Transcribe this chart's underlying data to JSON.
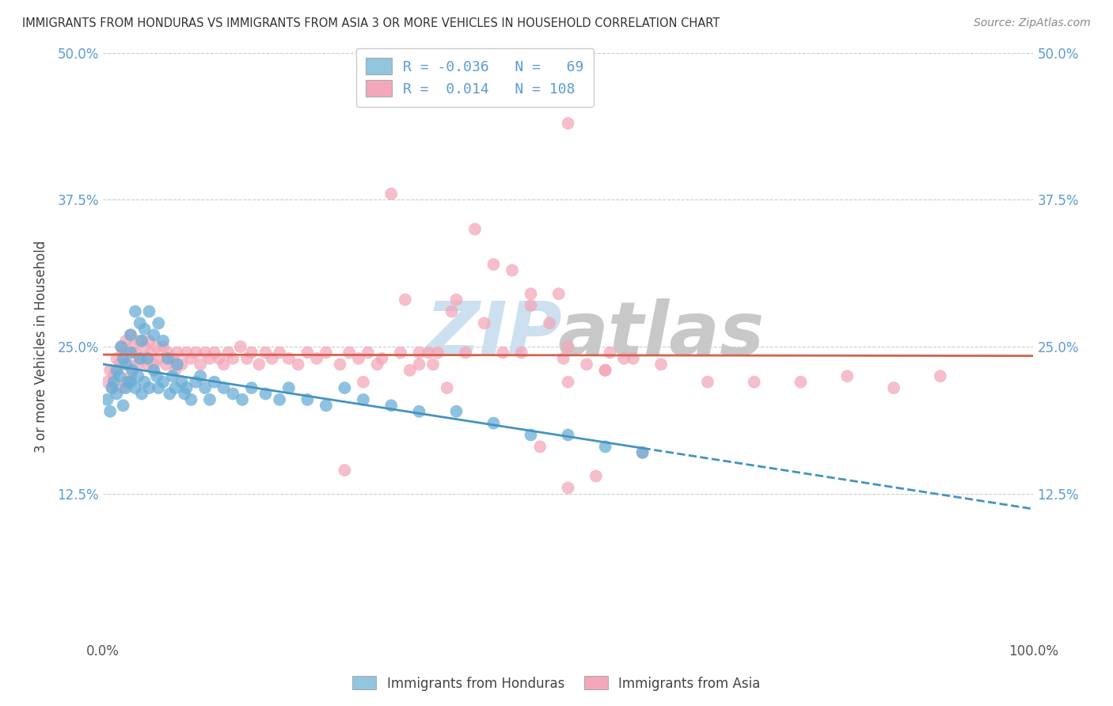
{
  "title": "IMMIGRANTS FROM HONDURAS VS IMMIGRANTS FROM ASIA 3 OR MORE VEHICLES IN HOUSEHOLD CORRELATION CHART",
  "source": "Source: ZipAtlas.com",
  "ylabel": "3 or more Vehicles in Household",
  "xlim": [
    0,
    1.0
  ],
  "ylim": [
    0,
    0.5
  ],
  "xtick_labels": [
    "0.0%",
    "100.0%"
  ],
  "ytick_values": [
    0.125,
    0.25,
    0.375,
    0.5
  ],
  "ytick_labels": [
    "12.5%",
    "25.0%",
    "37.5%",
    "50.0%"
  ],
  "bottom_legend": [
    "Immigrants from Honduras",
    "Immigrants from Asia"
  ],
  "blue_R": -0.036,
  "blue_N": 69,
  "pink_R": 0.014,
  "pink_N": 108,
  "blue_color": "#92c5de",
  "pink_color": "#f4a7b9",
  "blue_dot_color": "#6aaed6",
  "pink_dot_color": "#f4a7b9",
  "blue_line_color": "#4393c3",
  "pink_line_color": "#d6604d",
  "watermark_zip_color": "#cce0f0",
  "watermark_atlas_color": "#c8c8c8",
  "background_color": "#ffffff",
  "grid_color": "#cccccc",
  "tick_color": "#5b9bd5",
  "title_color": "#333333",
  "source_color": "#888888",
  "blue_x": [
    0.005,
    0.008,
    0.01,
    0.012,
    0.015,
    0.015,
    0.018,
    0.02,
    0.022,
    0.022,
    0.025,
    0.025,
    0.028,
    0.03,
    0.03,
    0.03,
    0.032,
    0.035,
    0.035,
    0.038,
    0.04,
    0.04,
    0.042,
    0.042,
    0.045,
    0.045,
    0.048,
    0.05,
    0.05,
    0.055,
    0.055,
    0.058,
    0.06,
    0.06,
    0.065,
    0.065,
    0.07,
    0.072,
    0.075,
    0.078,
    0.08,
    0.085,
    0.088,
    0.09,
    0.095,
    0.1,
    0.105,
    0.11,
    0.115,
    0.12,
    0.13,
    0.14,
    0.15,
    0.16,
    0.175,
    0.19,
    0.2,
    0.22,
    0.24,
    0.26,
    0.28,
    0.31,
    0.34,
    0.38,
    0.42,
    0.46,
    0.5,
    0.54,
    0.58
  ],
  "blue_y": [
    0.205,
    0.195,
    0.215,
    0.22,
    0.23,
    0.21,
    0.225,
    0.25,
    0.24,
    0.2,
    0.235,
    0.215,
    0.22,
    0.26,
    0.245,
    0.22,
    0.23,
    0.28,
    0.215,
    0.225,
    0.27,
    0.24,
    0.255,
    0.21,
    0.265,
    0.22,
    0.24,
    0.28,
    0.215,
    0.26,
    0.23,
    0.225,
    0.27,
    0.215,
    0.255,
    0.22,
    0.24,
    0.21,
    0.225,
    0.215,
    0.235,
    0.22,
    0.21,
    0.215,
    0.205,
    0.22,
    0.225,
    0.215,
    0.205,
    0.22,
    0.215,
    0.21,
    0.205,
    0.215,
    0.21,
    0.205,
    0.215,
    0.205,
    0.2,
    0.215,
    0.205,
    0.2,
    0.195,
    0.195,
    0.185,
    0.175,
    0.175,
    0.165,
    0.16
  ],
  "pink_x": [
    0.005,
    0.008,
    0.01,
    0.012,
    0.015,
    0.018,
    0.02,
    0.022,
    0.022,
    0.025,
    0.025,
    0.028,
    0.03,
    0.03,
    0.032,
    0.035,
    0.038,
    0.04,
    0.042,
    0.045,
    0.048,
    0.05,
    0.052,
    0.055,
    0.058,
    0.06,
    0.065,
    0.068,
    0.07,
    0.075,
    0.078,
    0.08,
    0.085,
    0.09,
    0.095,
    0.1,
    0.105,
    0.11,
    0.115,
    0.12,
    0.125,
    0.13,
    0.135,
    0.14,
    0.148,
    0.155,
    0.16,
    0.168,
    0.175,
    0.182,
    0.19,
    0.2,
    0.21,
    0.22,
    0.23,
    0.24,
    0.255,
    0.265,
    0.275,
    0.285,
    0.295,
    0.31,
    0.325,
    0.34,
    0.355,
    0.375,
    0.39,
    0.41,
    0.43,
    0.45,
    0.47,
    0.495,
    0.52,
    0.545,
    0.57,
    0.5,
    0.42,
    0.38,
    0.36,
    0.34,
    0.32,
    0.3,
    0.28,
    0.26,
    0.54,
    0.56,
    0.58,
    0.6,
    0.65,
    0.7,
    0.75,
    0.8,
    0.85,
    0.9,
    0.5,
    0.54,
    0.4,
    0.44,
    0.46,
    0.48,
    0.5,
    0.33,
    0.35,
    0.37,
    0.5,
    0.53,
    0.46,
    0.49
  ],
  "pink_y": [
    0.22,
    0.23,
    0.215,
    0.225,
    0.24,
    0.235,
    0.25,
    0.245,
    0.215,
    0.255,
    0.22,
    0.235,
    0.26,
    0.225,
    0.25,
    0.245,
    0.235,
    0.255,
    0.24,
    0.25,
    0.235,
    0.255,
    0.245,
    0.235,
    0.25,
    0.24,
    0.25,
    0.235,
    0.245,
    0.24,
    0.23,
    0.245,
    0.235,
    0.245,
    0.24,
    0.245,
    0.235,
    0.245,
    0.24,
    0.245,
    0.24,
    0.235,
    0.245,
    0.24,
    0.25,
    0.24,
    0.245,
    0.235,
    0.245,
    0.24,
    0.245,
    0.24,
    0.235,
    0.245,
    0.24,
    0.245,
    0.235,
    0.245,
    0.24,
    0.245,
    0.235,
    0.38,
    0.29,
    0.245,
    0.235,
    0.28,
    0.245,
    0.27,
    0.245,
    0.245,
    0.165,
    0.24,
    0.235,
    0.245,
    0.24,
    0.22,
    0.32,
    0.29,
    0.245,
    0.235,
    0.245,
    0.24,
    0.22,
    0.145,
    0.23,
    0.24,
    0.16,
    0.235,
    0.22,
    0.22,
    0.22,
    0.225,
    0.215,
    0.225,
    0.44,
    0.23,
    0.35,
    0.315,
    0.295,
    0.27,
    0.25,
    0.23,
    0.245,
    0.215,
    0.13,
    0.14,
    0.285,
    0.295
  ]
}
